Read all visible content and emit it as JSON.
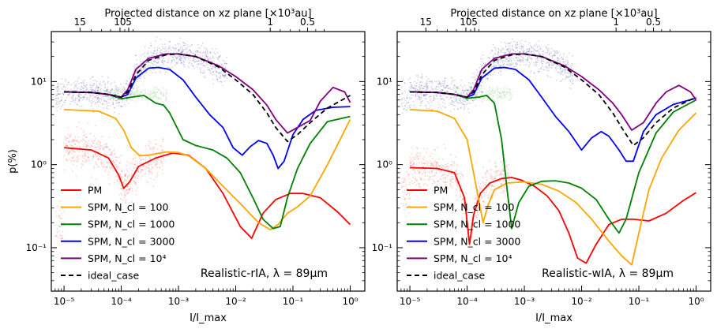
{
  "chart_data": [
    {
      "type": "line",
      "panel": "left",
      "annotation": "Realistic-rIA, λ = 89μm",
      "xlabel": "I/I_max",
      "ylabel": "p(%)",
      "top_axis_label": "Projected distance on xz plane [×10³au]",
      "x_scale": "log",
      "y_scale": "log",
      "xlim": [
        6e-06,
        1.8
      ],
      "ylim": [
        0.03,
        40
      ],
      "x_ticks": [
        {
          "v": 1e-05,
          "t": "10⁻⁵"
        },
        {
          "v": 0.0001,
          "t": "10⁻⁴"
        },
        {
          "v": 0.001,
          "t": "10⁻³"
        },
        {
          "v": 0.01,
          "t": "10⁻²"
        },
        {
          "v": 0.1,
          "t": "10⁻¹"
        },
        {
          "v": 1,
          "t": "10⁰"
        }
      ],
      "y_ticks": [
        {
          "v": 0.1,
          "t": "10⁻¹"
        },
        {
          "v": 1,
          "t": "10⁰"
        },
        {
          "v": 10,
          "t": "10¹"
        }
      ],
      "top_ticks": [
        {
          "v": 1.9e-05,
          "t": "15"
        },
        {
          "v": 9.5e-05,
          "t": "10"
        },
        {
          "v": 0.000135,
          "t": "5"
        },
        {
          "v": 0.04,
          "t": "1"
        },
        {
          "v": 0.18,
          "t": "0.5"
        }
      ],
      "legend_position": "lower-left",
      "series": [
        {
          "name": "PM",
          "color": "#ff0000",
          "dashed": false,
          "x": [
            1e-05,
            3e-05,
            6e-05,
            9e-05,
            0.00011,
            0.00014,
            0.0002,
            0.0004,
            0.0008,
            0.0015,
            0.003,
            0.006,
            0.012,
            0.019,
            0.03,
            0.05,
            0.09,
            0.15,
            0.3,
            0.6,
            1.0
          ],
          "y": [
            1.6,
            1.5,
            1.2,
            0.75,
            0.52,
            0.62,
            0.95,
            1.2,
            1.38,
            1.3,
            0.9,
            0.45,
            0.18,
            0.13,
            0.26,
            0.38,
            0.45,
            0.45,
            0.4,
            0.27,
            0.19
          ]
        },
        {
          "name": "SPM, N_cl = 100",
          "color": "#ffa500",
          "dashed": false,
          "x": [
            1e-05,
            4e-05,
            8e-05,
            0.00011,
            0.00015,
            0.00021,
            0.0003,
            0.0006,
            0.001,
            0.0015,
            0.003,
            0.006,
            0.012,
            0.025,
            0.04,
            0.055,
            0.08,
            0.12,
            0.2,
            0.4,
            1.0
          ],
          "y": [
            4.6,
            4.4,
            3.6,
            2.6,
            1.6,
            1.28,
            1.3,
            1.42,
            1.4,
            1.28,
            0.9,
            0.55,
            0.34,
            0.2,
            0.165,
            0.19,
            0.26,
            0.31,
            0.42,
            1.0,
            3.5
          ]
        },
        {
          "name": "SPM, N_cl = 1000",
          "color": "#008000",
          "dashed": false,
          "x": [
            1e-05,
            3e-05,
            6e-05,
            0.0001,
            0.00015,
            0.00025,
            0.0004,
            0.00055,
            0.0007,
            0.0012,
            0.002,
            0.004,
            0.007,
            0.012,
            0.02,
            0.03,
            0.045,
            0.06,
            0.08,
            0.12,
            0.2,
            0.4,
            1.0
          ],
          "y": [
            7.5,
            7.4,
            7.0,
            6.2,
            6.5,
            6.8,
            5.5,
            5.2,
            4.2,
            2.0,
            1.7,
            1.5,
            1.2,
            0.8,
            0.4,
            0.22,
            0.17,
            0.18,
            0.4,
            0.9,
            1.8,
            3.3,
            3.8
          ]
        },
        {
          "name": "SPM, N_cl = 3000",
          "color": "#0000ff",
          "dashed": false,
          "x": [
            1e-05,
            3e-05,
            6e-05,
            0.0001,
            0.00013,
            0.00018,
            0.0003,
            0.00045,
            0.0007,
            0.0012,
            0.002,
            0.0035,
            0.006,
            0.009,
            0.013,
            0.018,
            0.025,
            0.035,
            0.045,
            0.055,
            0.07,
            0.1,
            0.15,
            0.25,
            0.5,
            1.0
          ],
          "y": [
            7.5,
            7.4,
            7.0,
            6.5,
            7.0,
            11,
            14.5,
            14.8,
            14.0,
            10.5,
            6.5,
            4.0,
            2.8,
            1.6,
            1.3,
            1.65,
            1.95,
            1.8,
            1.3,
            0.9,
            1.1,
            2.3,
            3.5,
            4.5,
            4.9,
            5.0
          ]
        },
        {
          "name": "SPM, N_cl = 10⁴",
          "color": "#800080",
          "dashed": false,
          "x": [
            1e-05,
            3e-05,
            6e-05,
            0.0001,
            0.00013,
            0.00018,
            0.0003,
            0.0006,
            0.001,
            0.002,
            0.005,
            0.01,
            0.02,
            0.035,
            0.05,
            0.08,
            0.12,
            0.2,
            0.3,
            0.5,
            0.8,
            1.0
          ],
          "y": [
            7.5,
            7.4,
            7.0,
            6.5,
            8.0,
            14,
            19,
            21.5,
            21.5,
            20,
            15.5,
            11.5,
            8,
            5.2,
            3.5,
            2.4,
            2.8,
            3.4,
            5.8,
            8.5,
            7.5,
            5.6
          ]
        },
        {
          "name": "ideal_case",
          "color": "#000000",
          "dashed": true,
          "x": [
            1e-05,
            3e-05,
            6e-05,
            0.0001,
            0.00013,
            0.00018,
            0.0003,
            0.0006,
            0.001,
            0.002,
            0.005,
            0.01,
            0.02,
            0.035,
            0.05,
            0.08,
            0.12,
            0.2,
            0.4,
            1.0
          ],
          "y": [
            7.5,
            7.4,
            7.0,
            6.5,
            7.5,
            12,
            18,
            21,
            21.5,
            20,
            15,
            10.5,
            7.0,
            4.2,
            2.8,
            1.9,
            2.3,
            3.2,
            4.8,
            6.8
          ]
        }
      ]
    },
    {
      "type": "line",
      "panel": "right",
      "annotation": "Realistic-wIA, λ = 89μm",
      "xlabel": "I/I_max",
      "ylabel": "",
      "top_axis_label": "Projected distance on xz plane [×10³au]",
      "x_scale": "log",
      "y_scale": "log",
      "xlim": [
        6e-06,
        1.8
      ],
      "ylim": [
        0.03,
        40
      ],
      "x_ticks": [
        {
          "v": 1e-05,
          "t": "10⁻⁵"
        },
        {
          "v": 0.0001,
          "t": "10⁻⁴"
        },
        {
          "v": 0.001,
          "t": "10⁻³"
        },
        {
          "v": 0.01,
          "t": "10⁻²"
        },
        {
          "v": 0.1,
          "t": "10⁻¹"
        },
        {
          "v": 1,
          "t": "10⁰"
        }
      ],
      "y_ticks": [
        {
          "v": 0.1,
          "t": "10⁻¹"
        },
        {
          "v": 1,
          "t": "10⁰"
        },
        {
          "v": 10,
          "t": "10¹"
        }
      ],
      "top_ticks": [
        {
          "v": 1.9e-05,
          "t": "15"
        },
        {
          "v": 9.5e-05,
          "t": "10"
        },
        {
          "v": 0.000135,
          "t": "5"
        },
        {
          "v": 0.04,
          "t": "1"
        },
        {
          "v": 0.18,
          "t": "0.5"
        }
      ],
      "legend_position": "lower-left",
      "series": [
        {
          "name": "PM",
          "color": "#ff0000",
          "dashed": false,
          "x": [
            1e-05,
            3e-05,
            6e-05,
            9e-05,
            0.00011,
            0.00013,
            0.00017,
            0.00025,
            0.0004,
            0.0006,
            0.0009,
            0.0015,
            0.0025,
            0.004,
            0.006,
            0.0085,
            0.012,
            0.018,
            0.03,
            0.05,
            0.08,
            0.15,
            0.3,
            0.6,
            1.0
          ],
          "y": [
            0.92,
            0.9,
            0.8,
            0.4,
            0.11,
            0.25,
            0.45,
            0.6,
            0.68,
            0.7,
            0.65,
            0.55,
            0.42,
            0.28,
            0.15,
            0.075,
            0.065,
            0.11,
            0.19,
            0.22,
            0.22,
            0.21,
            0.26,
            0.37,
            0.46
          ]
        },
        {
          "name": "SPM, N_cl = 100",
          "color": "#ffa500",
          "dashed": false,
          "x": [
            1e-05,
            3e-05,
            6e-05,
            0.0001,
            0.00014,
            0.00019,
            0.00023,
            0.0003,
            0.0005,
            0.001,
            0.002,
            0.004,
            0.008,
            0.015,
            0.03,
            0.05,
            0.075,
            0.1,
            0.15,
            0.25,
            0.5,
            1.0
          ],
          "y": [
            4.6,
            4.4,
            3.6,
            2.0,
            0.6,
            0.2,
            0.32,
            0.5,
            0.6,
            0.62,
            0.58,
            0.48,
            0.35,
            0.22,
            0.12,
            0.08,
            0.062,
            0.15,
            0.5,
            1.2,
            2.6,
            4.2
          ]
        },
        {
          "name": "SPM, N_cl = 1000",
          "color": "#008000",
          "dashed": false,
          "x": [
            1e-05,
            3e-05,
            6e-05,
            0.0001,
            0.00016,
            0.00022,
            0.0003,
            0.0004,
            0.0005,
            0.0006,
            0.0008,
            0.0012,
            0.002,
            0.0035,
            0.006,
            0.01,
            0.018,
            0.03,
            0.045,
            0.06,
            0.1,
            0.2,
            0.4,
            1.0
          ],
          "y": [
            7.5,
            7.4,
            7.0,
            6.3,
            6.5,
            6.8,
            5.5,
            2.0,
            0.5,
            0.17,
            0.35,
            0.55,
            0.63,
            0.64,
            0.6,
            0.52,
            0.38,
            0.22,
            0.15,
            0.22,
            0.8,
            2.4,
            4.3,
            6.0
          ]
        },
        {
          "name": "SPM, N_cl = 3000",
          "color": "#0000ff",
          "dashed": false,
          "x": [
            1e-05,
            3e-05,
            6e-05,
            0.0001,
            0.00013,
            0.00018,
            0.0003,
            0.00045,
            0.0007,
            0.0012,
            0.002,
            0.0035,
            0.006,
            0.01,
            0.015,
            0.022,
            0.03,
            0.045,
            0.06,
            0.08,
            0.12,
            0.2,
            0.4,
            1.0
          ],
          "y": [
            7.5,
            7.4,
            7.0,
            6.5,
            7.0,
            11,
            14.5,
            14.8,
            14.0,
            10.5,
            6.5,
            3.8,
            2.5,
            1.5,
            2.1,
            2.5,
            2.2,
            1.5,
            1.1,
            1.1,
            2.5,
            4.0,
            5.3,
            6.3
          ]
        },
        {
          "name": "SPM, N_cl = 10⁴",
          "color": "#800080",
          "dashed": false,
          "x": [
            1e-05,
            3e-05,
            6e-05,
            0.0001,
            0.00013,
            0.00018,
            0.0003,
            0.0006,
            0.001,
            0.002,
            0.005,
            0.01,
            0.02,
            0.035,
            0.05,
            0.075,
            0.12,
            0.2,
            0.3,
            0.5,
            0.8,
            1.0
          ],
          "y": [
            7.5,
            7.4,
            7.0,
            6.5,
            8.0,
            14,
            19,
            21.5,
            21.5,
            20,
            15.5,
            11.5,
            8,
            5.5,
            4.0,
            2.6,
            3.2,
            5.5,
            7.5,
            9.0,
            7.5,
            6.0
          ]
        },
        {
          "name": "ideal_case",
          "color": "#000000",
          "dashed": true,
          "x": [
            1e-05,
            3e-05,
            6e-05,
            0.0001,
            0.00013,
            0.00018,
            0.0003,
            0.0006,
            0.001,
            0.002,
            0.005,
            0.01,
            0.02,
            0.035,
            0.05,
            0.08,
            0.12,
            0.2,
            0.4,
            1.0
          ],
          "y": [
            7.5,
            7.4,
            7.0,
            6.5,
            7.5,
            12,
            18,
            21,
            21.5,
            20,
            15,
            10.5,
            7.0,
            4.2,
            2.8,
            1.7,
            2.1,
            3.2,
            4.8,
            6.5
          ]
        }
      ]
    }
  ]
}
